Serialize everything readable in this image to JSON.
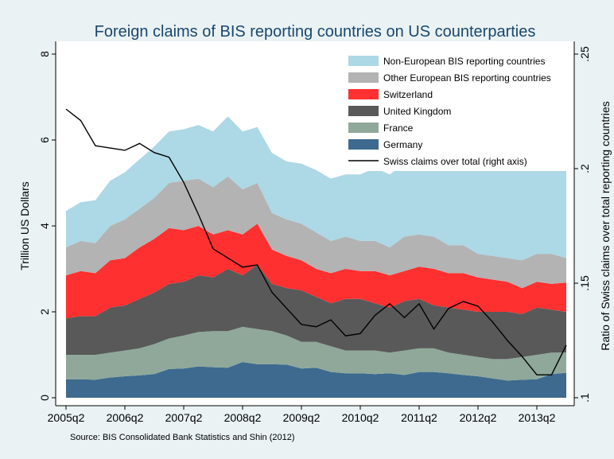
{
  "chart_data": {
    "type": "stacked-area",
    "title": "Foreign claims of BIS reporting countries on US counterparties",
    "source": "Source: BIS Consolidated Bank Statistics and Shin (2012)",
    "ylabel": "Trillion US Dollars",
    "y2label": "Ratio of Swiss claims over total reporting countries",
    "categories": [
      "2005q2",
      null,
      null,
      null,
      "2006q2",
      null,
      null,
      null,
      "2007q2",
      null,
      null,
      null,
      "2008q2",
      null,
      null,
      null,
      "2009q2",
      null,
      null,
      null,
      "2010q2",
      null,
      null,
      null,
      "2011q2",
      null,
      null,
      null,
      "2012q2",
      null,
      null,
      null,
      "2013q2",
      null,
      null
    ],
    "ylim": [
      0,
      8
    ],
    "yticks": [
      0,
      2,
      4,
      6,
      8
    ],
    "y2lim": [
      0.1,
      0.25
    ],
    "y2ticks": [
      {
        "value": 0.1,
        "label": ".1"
      },
      {
        "value": 0.15,
        "label": ".15"
      },
      {
        "value": 0.2,
        "label": ".2"
      },
      {
        "value": 0.25,
        "label": ".25"
      }
    ],
    "series": [
      {
        "name": "Germany",
        "color": "#3d6a8e",
        "values": [
          0.43,
          0.43,
          0.42,
          0.47,
          0.5,
          0.52,
          0.55,
          0.67,
          0.68,
          0.73,
          0.71,
          0.7,
          0.83,
          0.78,
          0.78,
          0.77,
          0.68,
          0.7,
          0.6,
          0.57,
          0.57,
          0.55,
          0.57,
          0.53,
          0.6,
          0.6,
          0.57,
          0.53,
          0.5,
          0.45,
          0.4,
          0.42,
          0.43,
          0.55,
          0.58
        ]
      },
      {
        "name": "France",
        "color": "#8fa89a",
        "values": [
          0.57,
          0.57,
          0.58,
          0.58,
          0.6,
          0.63,
          0.7,
          0.71,
          0.77,
          0.8,
          0.84,
          0.85,
          0.82,
          0.82,
          0.77,
          0.68,
          0.62,
          0.6,
          0.6,
          0.53,
          0.53,
          0.55,
          0.48,
          0.57,
          0.55,
          0.55,
          0.48,
          0.47,
          0.45,
          0.45,
          0.5,
          0.53,
          0.57,
          0.5,
          0.47
        ]
      },
      {
        "name": "United Kingdom",
        "color": "#595959",
        "values": [
          0.85,
          0.9,
          0.9,
          1.05,
          1.05,
          1.15,
          1.2,
          1.27,
          1.25,
          1.32,
          1.25,
          1.45,
          1.2,
          1.5,
          1.1,
          1.1,
          1.2,
          1.05,
          1.0,
          1.2,
          1.2,
          1.1,
          1.05,
          1.15,
          1.15,
          1.0,
          1.05,
          1.05,
          1.05,
          1.1,
          1.1,
          1.0,
          1.1,
          1.0,
          0.95
        ]
      },
      {
        "name": "Switzerland",
        "color": "#ff3030",
        "values": [
          1.0,
          1.05,
          1.0,
          1.1,
          1.1,
          1.2,
          1.25,
          1.3,
          1.2,
          1.15,
          1.0,
          0.9,
          0.95,
          0.95,
          0.8,
          0.75,
          0.7,
          0.65,
          0.7,
          0.7,
          0.65,
          0.75,
          0.75,
          0.7,
          0.75,
          0.85,
          0.8,
          0.85,
          0.8,
          0.75,
          0.7,
          0.6,
          0.6,
          0.6,
          0.68
        ]
      },
      {
        "name": "Other European BIS reporting countries",
        "color": "#b3b3b3",
        "values": [
          0.65,
          0.7,
          0.7,
          0.8,
          0.9,
          0.9,
          0.95,
          1.05,
          1.15,
          1.1,
          1.1,
          1.25,
          1.05,
          0.95,
          0.85,
          0.85,
          0.85,
          0.85,
          0.75,
          0.75,
          0.7,
          0.7,
          0.65,
          0.8,
          0.75,
          0.75,
          0.65,
          0.65,
          0.55,
          0.55,
          0.55,
          0.65,
          0.65,
          0.7,
          0.57
        ]
      },
      {
        "name": "Non-European BIS reporting countries",
        "color": "#add8e6",
        "values": [
          0.85,
          0.9,
          1.0,
          1.05,
          1.1,
          1.15,
          1.2,
          1.2,
          1.2,
          1.25,
          1.3,
          1.4,
          1.35,
          1.3,
          1.4,
          1.35,
          1.4,
          1.45,
          1.45,
          1.45,
          1.55,
          1.7,
          1.7,
          1.7,
          1.8,
          1.75,
          1.9,
          1.95,
          2.05,
          2.05,
          2.05,
          2.1,
          2.1,
          2.1,
          2.15
        ]
      },
      {
        "name": "Swiss claims over total (right axis)",
        "color": "#000000",
        "axis": "y2",
        "values": [
          0.226,
          0.221,
          0.21,
          0.209,
          0.208,
          0.211,
          0.207,
          0.205,
          0.194,
          0.18,
          0.165,
          0.161,
          0.157,
          0.158,
          0.146,
          0.139,
          0.132,
          0.131,
          0.134,
          0.127,
          0.128,
          0.136,
          0.141,
          0.135,
          0.141,
          0.13,
          0.139,
          0.142,
          0.14,
          0.133,
          0.125,
          0.118,
          0.11,
          0.11,
          0.123
        ]
      }
    ]
  }
}
